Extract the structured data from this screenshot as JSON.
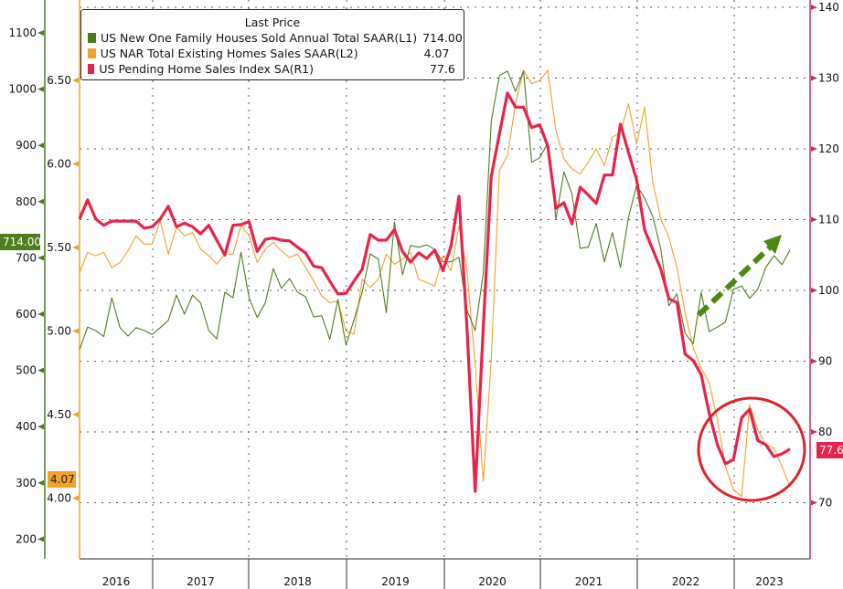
{
  "chart_data": {
    "type": "line",
    "start_month": "2016-04",
    "frequency": "monthly",
    "legend_title": "Last Price",
    "legend_position": "top-left",
    "series": [
      {
        "name": "US New One Family Houses Sold Annual Total SAAR",
        "axis": "(L1)",
        "last": "714.00",
        "color": "#4e7d1e",
        "values": [
          537,
          577,
          571,
          560,
          629,
          576,
          561,
          576,
          571,
          564,
          576,
          589,
          634,
          600,
          634,
          620,
          571,
          556,
          639,
          629,
          710,
          629,
          594,
          620,
          681,
          646,
          663,
          639,
          631,
          595,
          597,
          555,
          626,
          545,
          590,
          639,
          707,
          698,
          603,
          764,
          670,
          722,
          719,
          723,
          715,
          693,
          693,
          701,
          607,
          571,
          672,
          943,
          1024,
          1032,
          996,
          1032,
          870,
          878,
          904,
          769,
          853,
          813,
          717,
          719,
          761,
          693,
          745,
          683,
          772,
          829,
          806,
          774,
          715,
          615,
          636,
          566,
          547,
          639,
          569,
          577,
          586,
          644,
          650,
          628,
          644,
          683,
          704,
          688,
          714
        ]
      },
      {
        "name": "US NAR Total Existing Homes Sales SAAR",
        "axis": "(L2)",
        "last": "4.07",
        "color": "#f0a22a",
        "values": [
          5.35,
          5.47,
          5.45,
          5.47,
          5.38,
          5.41,
          5.48,
          5.57,
          5.52,
          5.52,
          5.66,
          5.46,
          5.62,
          5.57,
          5.59,
          5.49,
          5.45,
          5.4,
          5.46,
          5.46,
          5.63,
          5.57,
          5.41,
          5.49,
          5.53,
          5.48,
          5.44,
          5.46,
          5.38,
          5.3,
          5.21,
          5.17,
          5.18,
          5.0,
          4.98,
          5.31,
          5.26,
          5.31,
          5.46,
          5.4,
          5.43,
          5.47,
          5.31,
          5.29,
          5.27,
          5.45,
          5.36,
          5.63,
          5.36,
          4.8,
          4.1,
          4.83,
          5.96,
          6.05,
          6.36,
          6.56,
          6.48,
          6.5,
          6.56,
          6.2,
          6.03,
          5.97,
          5.94,
          6.01,
          6.09,
          5.99,
          6.16,
          6.19,
          6.36,
          6.12,
          6.34,
          5.89,
          5.67,
          5.56,
          5.38,
          5.11,
          4.9,
          4.78,
          4.69,
          4.47,
          4.19,
          4.05,
          4.01,
          4.56,
          4.41,
          4.32,
          4.3,
          4.19,
          4.07
        ]
      },
      {
        "name": "US Pending Home Sales Index SA",
        "axis": "(R1)",
        "last": "77.6",
        "color": "#e8234a",
        "values": [
          110.1,
          112.8,
          110.1,
          109.2,
          109.8,
          109.8,
          109.8,
          109.8,
          108.8,
          109.0,
          110.1,
          111.9,
          109.0,
          109.5,
          109.0,
          108.0,
          109.2,
          107.1,
          105.0,
          109.2,
          109.3,
          109.7,
          105.5,
          107.2,
          107.4,
          107.1,
          107.0,
          106.1,
          105.3,
          103.4,
          103.2,
          101.3,
          99.5,
          99.6,
          101.3,
          103.0,
          107.9,
          107.1,
          107.1,
          108.6,
          105.5,
          104.0,
          105.3,
          104.5,
          105.7,
          102.8,
          106.2,
          113.3,
          94.6,
          71.6,
          94.6,
          116.1,
          122.1,
          127.9,
          125.9,
          125.9,
          123.0,
          123.4,
          120.4,
          111.6,
          112.4,
          109.4,
          114.6,
          113.5,
          112.3,
          116.3,
          116.3,
          123.5,
          119.5,
          115.6,
          108.5,
          105.8,
          103.0,
          98.8,
          98.3,
          91.0,
          90.1,
          88.1,
          82.6,
          78.2,
          75.5,
          76.1,
          82.0,
          83.2,
          78.8,
          78.2,
          76.5,
          76.9,
          77.6
        ]
      }
    ],
    "axes": {
      "left1": {
        "ticks": [
          "200",
          "300",
          "400",
          "500",
          "600",
          "700",
          "800",
          "900",
          "1000",
          "1100"
        ],
        "range": [
          160,
          1160
        ],
        "color": "#4e7d1e",
        "last_tag": "714.00"
      },
      "left2": {
        "ticks": [
          "4.00",
          "4.50",
          "5.00",
          "5.50",
          "6.00",
          "6.50"
        ],
        "range": [
          3.83,
          6.54
        ],
        "color": "#e8a530",
        "last_tag": "4.07"
      },
      "right1": {
        "ticks": [
          "70",
          "80",
          "90",
          "100",
          "110",
          "120",
          "130",
          "140"
        ],
        "range": [
          61,
          141
        ],
        "color": "#c2315a",
        "last_tag": "77.6"
      },
      "x": {
        "years": [
          "2016",
          "2017",
          "2018",
          "2019",
          "2020",
          "2021",
          "2022",
          "2023"
        ]
      }
    },
    "grid": true,
    "annotations": [
      {
        "type": "ellipse",
        "note": "circled recent pending/existing sales lows",
        "color": "#d8262e"
      },
      {
        "type": "dashed-arrow",
        "note": "new home sales upward trend",
        "color": "#4a8a12"
      }
    ]
  }
}
